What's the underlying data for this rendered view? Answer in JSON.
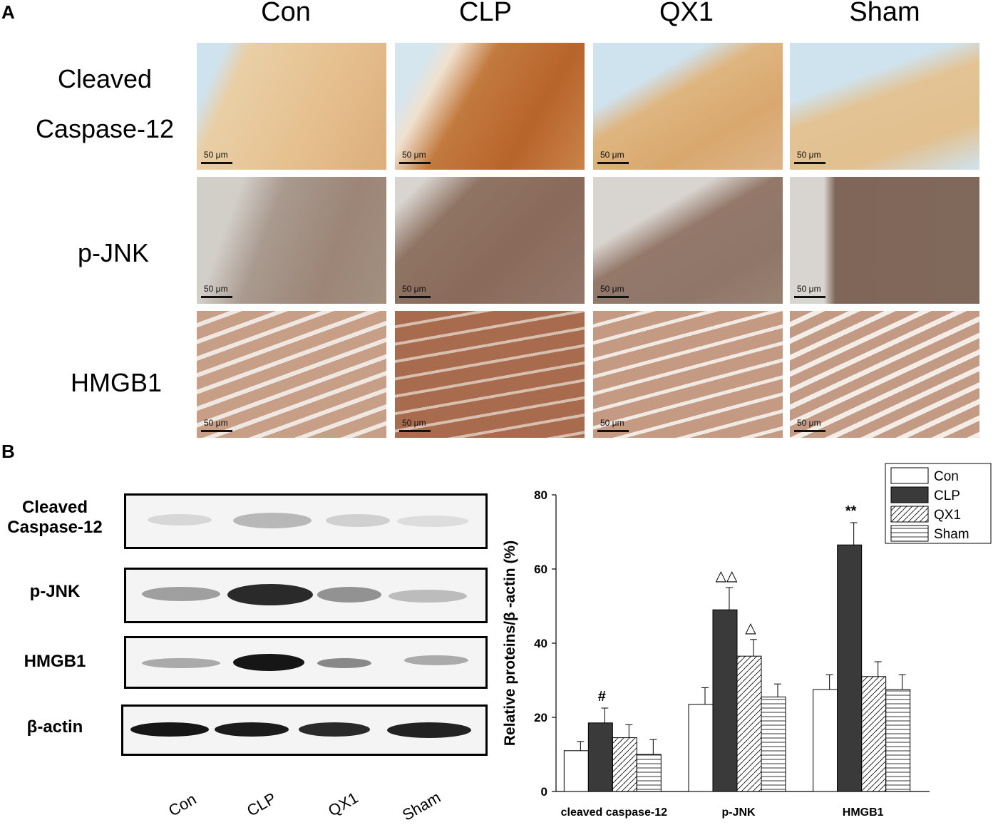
{
  "panel_a": {
    "letter": "A",
    "columns": [
      "Con",
      "CLP",
      "QX1",
      "Sham"
    ],
    "rows": [
      {
        "label_line1": "Cleaved",
        "label_line2": "Caspase-12"
      },
      {
        "label_line1": "p-JNK",
        "label_line2": ""
      },
      {
        "label_line1": "HMGB1",
        "label_line2": ""
      }
    ],
    "scale_bar_label": "50 μm",
    "stain_colors": {
      "caspase_light": "#e6c08f",
      "caspase_dark": "#b8642a",
      "jnk": "#8a6a5a",
      "hmgb1": "#b8896f",
      "background_blue": "#cfe3ef",
      "background_gray": "#d8d4cf"
    }
  },
  "panel_b": {
    "letter": "B",
    "blot_rows": [
      {
        "label": "Cleaved Caspase-12",
        "label_line1": "Cleaved",
        "label_line2": "Caspase-12"
      },
      {
        "label": "p-JNK"
      },
      {
        "label": "HMGB1"
      },
      {
        "label": "β-actin"
      }
    ],
    "lanes": [
      "Con",
      "CLP",
      "QX1",
      "Sham"
    ]
  },
  "chart_data": {
    "type": "bar",
    "categories": [
      "cleaved caspase-12",
      "p-JNK",
      "HMGB1"
    ],
    "series": [
      {
        "name": "Con",
        "values": [
          11,
          23.5,
          27.5
        ],
        "errors": [
          2.5,
          4.5,
          4
        ],
        "fill": "white"
      },
      {
        "name": "CLP",
        "values": [
          18.5,
          49,
          66.5
        ],
        "errors": [
          4,
          6,
          6
        ],
        "fill": "#3a3a3a"
      },
      {
        "name": "QX1",
        "values": [
          14.5,
          36.5,
          31
        ],
        "errors": [
          3.5,
          4.5,
          4
        ],
        "fill": "diagonal-hatch"
      },
      {
        "name": "Sham",
        "values": [
          10,
          25.5,
          27.5
        ],
        "errors": [
          4,
          3.5,
          4
        ],
        "fill": "horizontal-hatch"
      }
    ],
    "annotations": [
      {
        "category": "cleaved caspase-12",
        "series": "CLP",
        "text": "#"
      },
      {
        "category": "p-JNK",
        "series": "CLP",
        "text": "△△"
      },
      {
        "category": "p-JNK",
        "series": "QX1",
        "text": "△"
      },
      {
        "category": "HMGB1",
        "series": "CLP",
        "text": "**"
      }
    ],
    "ylabel": "Relative proteins/β -actin (%)",
    "xlabel": "",
    "ylim": [
      0,
      80
    ],
    "yticks": [
      0,
      20,
      40,
      60,
      80
    ],
    "legend": "top-right"
  }
}
